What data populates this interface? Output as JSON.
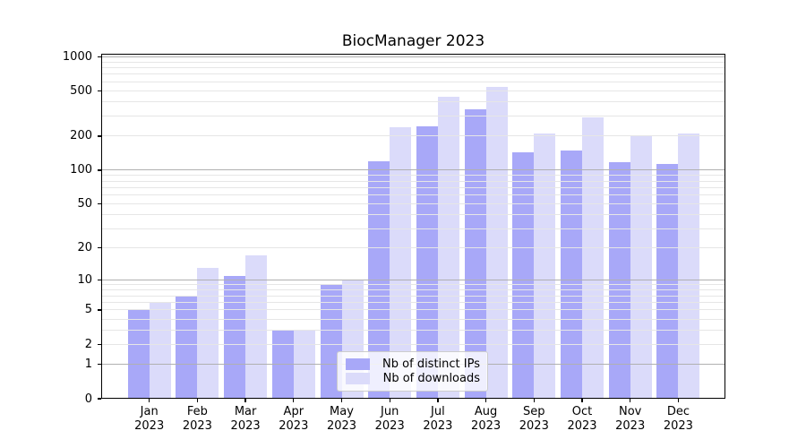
{
  "chart_data": {
    "type": "bar",
    "title": "BiocManager 2023",
    "x_tick_labels": [
      [
        "Jan",
        "2023"
      ],
      [
        "Feb",
        "2023"
      ],
      [
        "Mar",
        "2023"
      ],
      [
        "Apr",
        "2023"
      ],
      [
        "May",
        "2023"
      ],
      [
        "Jun",
        "2023"
      ],
      [
        "Jul",
        "2023"
      ],
      [
        "Aug",
        "2023"
      ],
      [
        "Sep",
        "2023"
      ],
      [
        "Oct",
        "2023"
      ],
      [
        "Nov",
        "2023"
      ],
      [
        "Dec",
        "2023"
      ]
    ],
    "series": [
      {
        "name": "Nb of distinct IPs",
        "color": "#a8a8f8",
        "values": [
          5,
          7,
          11,
          3,
          9,
          120,
          245,
          347,
          145,
          148,
          118,
          114
        ]
      },
      {
        "name": "Nb of downloads",
        "color": "#dbdbfa",
        "values": [
          6,
          13,
          17,
          3,
          10,
          240,
          440,
          540,
          210,
          290,
          200,
          210
        ]
      }
    ],
    "y_axis": {
      "scale": "log1p",
      "tick_values": [
        0,
        1,
        2,
        5,
        10,
        20,
        50,
        100,
        200,
        500,
        1000
      ],
      "tick_labels": [
        "0",
        "1",
        "2",
        "5",
        "10",
        "20",
        "50",
        "100",
        "200",
        "500",
        "1000"
      ],
      "major_grid_values": [
        1,
        10,
        100,
        1000
      ],
      "range": [
        0,
        1000
      ]
    },
    "legend": {
      "location": "lower center",
      "entries": [
        "Nb of distinct IPs",
        "Nb of downloads"
      ]
    },
    "grid": "on",
    "colors": {
      "background": "#ffffff",
      "major_grid": "#b0b0b0",
      "minor_grid": "#e6e6e6",
      "spine": "#000000",
      "text": "#000000"
    }
  }
}
